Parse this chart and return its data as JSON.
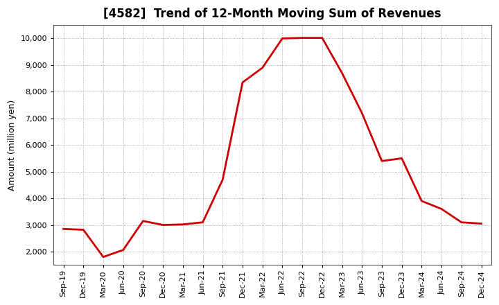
{
  "title": "[4582]  Trend of 12-Month Moving Sum of Revenues",
  "ylabel": "Amount (million yen)",
  "line_color": "#cc0000",
  "line_width": 2.0,
  "background_color": "#ffffff",
  "grid_color": "#999999",
  "x_labels": [
    "Sep-19",
    "Dec-19",
    "Mar-20",
    "Jun-20",
    "Sep-20",
    "Dec-20",
    "Mar-21",
    "Jun-21",
    "Sep-21",
    "Dec-21",
    "Mar-22",
    "Jun-22",
    "Sep-22",
    "Dec-22",
    "Mar-23",
    "Jun-23",
    "Sep-23",
    "Dec-23",
    "Mar-24",
    "Jun-24",
    "Sep-24",
    "Dec-24"
  ],
  "y_values": [
    2850,
    2820,
    1800,
    2060,
    3150,
    3000,
    3020,
    3100,
    4700,
    8350,
    8900,
    10000,
    10020,
    10020,
    8700,
    7200,
    5400,
    5500,
    3900,
    3600,
    3100,
    3050
  ],
  "ylim": [
    1500,
    10500
  ],
  "yticks": [
    2000,
    3000,
    4000,
    5000,
    6000,
    7000,
    8000,
    9000,
    10000
  ],
  "title_fontsize": 12,
  "axis_fontsize": 9,
  "tick_fontsize": 8
}
